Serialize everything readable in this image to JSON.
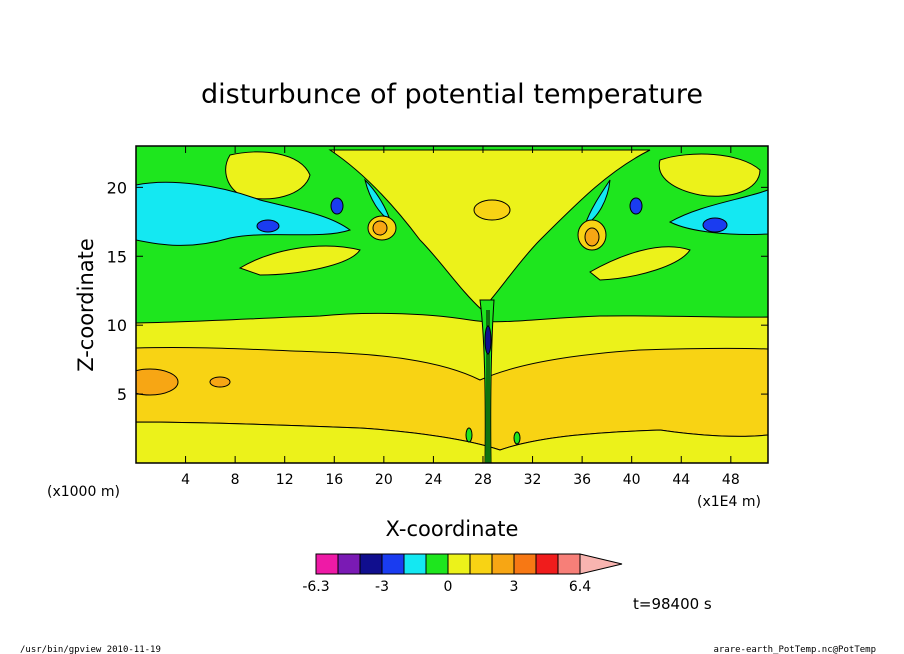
{
  "chart_data": {
    "type": "heatmap",
    "title": "disturbunce of potential temperature",
    "xlabel": "X-coordinate",
    "ylabel": "Z-coordinate",
    "x_unit": "(x1E4 m)",
    "y_unit": "(x1000 m)",
    "xlim": [
      0,
      51
    ],
    "ylim": [
      0,
      23
    ],
    "x_ticks": [
      "4",
      "8",
      "12",
      "16",
      "20",
      "24",
      "28",
      "32",
      "36",
      "40",
      "44",
      "48"
    ],
    "y_ticks": [
      "5",
      "10",
      "15",
      "20"
    ],
    "colorbar": {
      "labels": [
        "-6.3",
        "-3",
        "0",
        "3",
        "6.4"
      ],
      "colors": [
        "#ee1aa6",
        "#7a1ab4",
        "#100e8e",
        "#1a3cf0",
        "#14e8f2",
        "#1ee61e",
        "#ecf21a",
        "#f8d314",
        "#f7a614",
        "#f77814",
        "#f01c1c",
        "#f77f78",
        "#f8b4b0"
      ]
    },
    "time_label": "t=98400 s",
    "layers": [
      {
        "z_range": [
          0,
          3
        ],
        "color": "#ecf21a",
        "level": "0 to 1"
      },
      {
        "z_range": [
          3,
          8.3
        ],
        "color": "#f8d314",
        "level": "1 to 2"
      },
      {
        "z_range": [
          8.3,
          9.9
        ],
        "color": "#ecf21a",
        "level": "0 to 1"
      },
      {
        "z_range": [
          9.9,
          23
        ],
        "color": "#1ee61e",
        "level": "-1 to 0"
      }
    ]
  },
  "footer": {
    "left": "/usr/bin/gpview   2010-11-19",
    "right": "arare-earth_PotTemp.nc@PotTemp"
  }
}
